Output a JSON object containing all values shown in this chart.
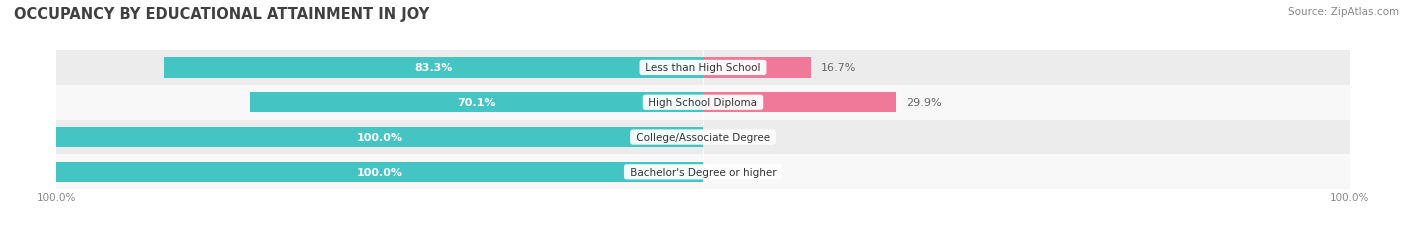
{
  "title": "OCCUPANCY BY EDUCATIONAL ATTAINMENT IN JOY",
  "source": "Source: ZipAtlas.com",
  "categories": [
    "Less than High School",
    "High School Diploma",
    "College/Associate Degree",
    "Bachelor's Degree or higher"
  ],
  "owner_pct": [
    83.3,
    70.1,
    100.0,
    100.0
  ],
  "renter_pct": [
    16.7,
    29.9,
    0.0,
    0.0
  ],
  "owner_color": "#45c4c4",
  "renter_color": "#f07898",
  "row_bg_colors": [
    "#ececec",
    "#f8f8f8",
    "#ececec",
    "#f8f8f8"
  ],
  "title_fontsize": 10.5,
  "label_fontsize": 8.0,
  "tick_fontsize": 7.5,
  "source_fontsize": 7.5,
  "figsize": [
    14.06,
    2.32
  ],
  "dpi": 100
}
